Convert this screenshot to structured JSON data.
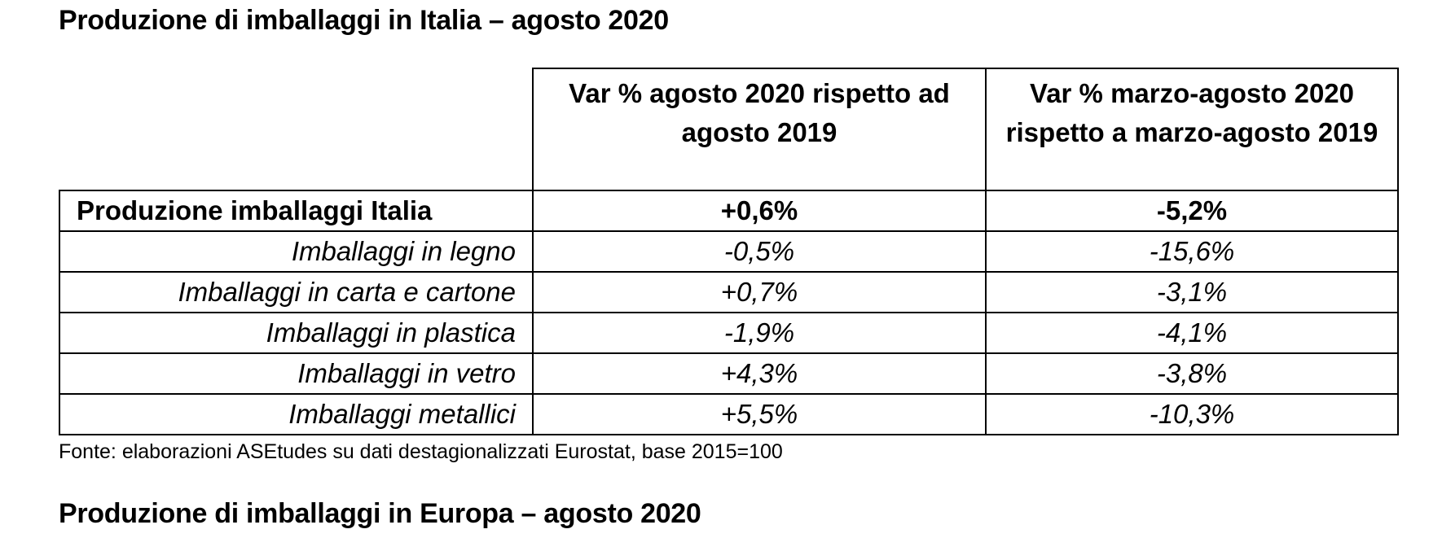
{
  "titles": {
    "italia": "Produzione di imballaggi in Italia – agosto 2020",
    "europa": "Produzione di imballaggi in Europa – agosto 2020"
  },
  "table": {
    "headers": [
      "",
      "Var % agosto 2020 rispetto ad agosto 2019",
      "Var % marzo-agosto 2020 rispetto a marzo-agosto 2019"
    ],
    "total": {
      "label": "Produzione imballaggi Italia",
      "values": [
        "+0,6%",
        "-5,2%"
      ]
    },
    "rows": [
      {
        "label": "Imballaggi in legno",
        "values": [
          "-0,5%",
          "-15,6%"
        ]
      },
      {
        "label": "Imballaggi in carta e cartone",
        "values": [
          "+0,7%",
          "-3,1%"
        ]
      },
      {
        "label": "Imballaggi in plastica",
        "values": [
          "-1,9%",
          "-4,1%"
        ]
      },
      {
        "label": "Imballaggi in vetro",
        "values": [
          "+4,3%",
          "-3,8%"
        ]
      },
      {
        "label": "Imballaggi metallici",
        "values": [
          "+5,5%",
          "-10,3%"
        ]
      }
    ]
  },
  "source": "Fonte: elaborazioni ASEtudes su dati destagionalizzati Eurostat, base 2015=100"
}
